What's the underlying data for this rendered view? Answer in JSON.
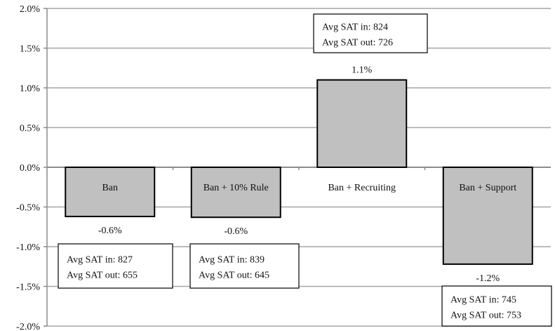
{
  "chart_data": {
    "type": "bar",
    "title": "",
    "xlabel": "",
    "ylabel": "",
    "ylim": [
      -2.0,
      2.0
    ],
    "yticks": [
      2.0,
      1.5,
      1.0,
      0.5,
      0.0,
      -0.5,
      -1.0,
      -1.5,
      -2.0
    ],
    "ytick_labels": [
      "2.0%",
      "1.5%",
      "1.0%",
      "0.5%",
      "0.0%",
      "-0.5%",
      "-1.0%",
      "-1.5%",
      "-2.0%"
    ],
    "y_unit": "%",
    "grid": true,
    "bar_color": "#c0c0c0",
    "categories": [
      "Ban",
      "Ban + 10% Rule",
      "Ban + Recruiting",
      "Ban + Support"
    ],
    "values": [
      -0.62,
      -0.63,
      1.1,
      -1.22
    ],
    "data_labels": [
      "-0.6%",
      "-0.6%",
      "1.1%",
      "-1.2%"
    ],
    "annotations": [
      {
        "line1": "Avg SAT in:   827",
        "line2": "Avg SAT out: 655"
      },
      {
        "line1": "Avg SAT in:   839",
        "line2": "Avg SAT out: 645"
      },
      {
        "line1": "Avg SAT in:   824",
        "line2": "Avg SAT out: 726"
      },
      {
        "line1": "Avg SAT in:   745",
        "line2": "Avg SAT out: 753"
      }
    ]
  }
}
